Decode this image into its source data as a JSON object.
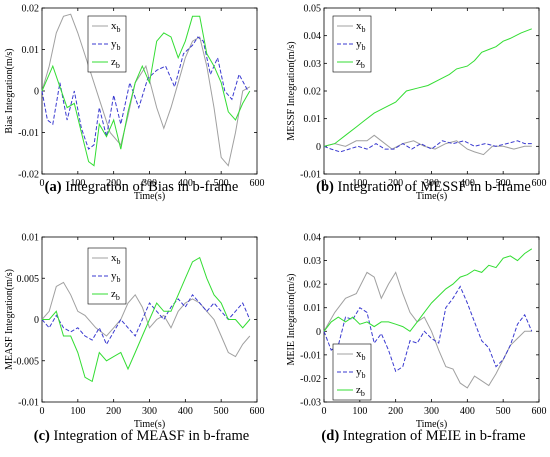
{
  "chart_data": [
    {
      "type": "line",
      "panel_label": "(a)",
      "caption": "Integration of Bias in b-frame",
      "xlabel": "Time(s)",
      "ylabel": "Bias Integration(m/s)",
      "xlim": [
        0,
        600
      ],
      "ylim": [
        -0.02,
        0.02
      ],
      "xticks": [
        0,
        100,
        200,
        300,
        400,
        500,
        600
      ],
      "yticks": [
        -0.02,
        -0.01,
        0,
        0.01,
        0.02
      ],
      "ytick_labels": [
        "-0.02",
        "-0.01",
        "0",
        "0.01",
        "0.02"
      ],
      "legend": "top-center",
      "series": [
        {
          "name": "x",
          "sub": "b",
          "color": "#a0a0a0",
          "dash": "solid",
          "x": [
            0,
            20,
            40,
            60,
            80,
            100,
            130,
            160,
            190,
            220,
            240,
            260,
            290,
            320,
            340,
            360,
            380,
            400,
            420,
            440,
            460,
            480,
            500,
            520,
            540,
            560,
            580
          ],
          "y": [
            0.0,
            0.006,
            0.014,
            0.018,
            0.0185,
            0.014,
            0.006,
            -0.002,
            -0.01,
            -0.013,
            -0.006,
            0.002,
            0.006,
            -0.004,
            -0.009,
            -0.004,
            0.002,
            0.008,
            0.012,
            0.013,
            0.006,
            -0.004,
            -0.016,
            -0.018,
            -0.01,
            0.0,
            0.001
          ]
        },
        {
          "name": "y",
          "sub": "b",
          "color": "#3a3ad0",
          "dash": "dashed",
          "x": [
            0,
            15,
            30,
            50,
            70,
            90,
            110,
            130,
            145,
            160,
            180,
            200,
            220,
            245,
            270,
            295,
            320,
            345,
            370,
            395,
            420,
            435,
            450,
            470,
            490,
            510,
            530,
            550,
            575
          ],
          "y": [
            0.0,
            -0.007,
            -0.008,
            0.002,
            -0.007,
            0.0,
            -0.009,
            -0.014,
            -0.013,
            -0.004,
            -0.011,
            -0.001,
            -0.008,
            0.002,
            -0.004,
            0.003,
            0.005,
            0.006,
            0.001,
            0.009,
            0.011,
            0.013,
            0.012,
            0.004,
            0.008,
            0.0,
            -0.002,
            0.004,
            0.0
          ]
        },
        {
          "name": "z",
          "sub": "b",
          "color": "#33dd33",
          "dash": "solid",
          "x": [
            0,
            10,
            30,
            50,
            70,
            90,
            110,
            130,
            145,
            160,
            180,
            200,
            220,
            240,
            260,
            280,
            300,
            320,
            340,
            360,
            380,
            400,
            420,
            440,
            460,
            480,
            500,
            520,
            540,
            560,
            580
          ],
          "y": [
            0.0,
            0.002,
            0.006,
            0.001,
            -0.004,
            -0.003,
            -0.01,
            -0.017,
            -0.018,
            -0.008,
            -0.011,
            -0.007,
            -0.014,
            -0.005,
            0.002,
            0.006,
            0.002,
            0.012,
            0.014,
            0.013,
            0.008,
            0.012,
            0.018,
            0.018,
            0.009,
            0.006,
            0.002,
            -0.005,
            -0.007,
            -0.003,
            0.0
          ]
        }
      ]
    },
    {
      "type": "line",
      "panel_label": "(b)",
      "caption": "Integration of MESSF in b-frame",
      "xlabel": "Time(s)",
      "ylabel": "MESSF Integration(m/s)",
      "xlim": [
        0,
        600
      ],
      "ylim": [
        -0.01,
        0.05
      ],
      "xticks": [
        0,
        100,
        200,
        300,
        400,
        500,
        600
      ],
      "yticks": [
        -0.01,
        0,
        0.01,
        0.02,
        0.03,
        0.04,
        0.05
      ],
      "ytick_labels": [
        "-0.01",
        "0",
        "0.01",
        "0.02",
        "0.03",
        "0.04",
        "0.05"
      ],
      "legend": "top-left",
      "series": [
        {
          "name": "x",
          "sub": "b",
          "color": "#a0a0a0",
          "dash": "solid",
          "x": [
            0,
            30,
            60,
            90,
            120,
            140,
            160,
            190,
            220,
            250,
            280,
            310,
            340,
            370,
            400,
            420,
            445,
            470,
            500,
            530,
            560,
            580
          ],
          "y": [
            0.0,
            0.001,
            0.0,
            0.002,
            0.002,
            0.004,
            0.002,
            -0.001,
            0.001,
            0.002,
            0.0,
            -0.001,
            0.001,
            0.002,
            -0.001,
            -0.002,
            -0.003,
            0.0,
            0.0,
            -0.001,
            0.0,
            0.0
          ]
        },
        {
          "name": "y",
          "sub": "b",
          "color": "#3a3ad0",
          "dash": "dashed",
          "x": [
            0,
            20,
            45,
            70,
            95,
            120,
            145,
            170,
            195,
            220,
            245,
            270,
            300,
            330,
            360,
            390,
            420,
            450,
            480,
            510,
            540,
            560,
            580
          ],
          "y": [
            0.0,
            -0.001,
            -0.002,
            -0.001,
            0.0,
            -0.001,
            0.001,
            -0.001,
            -0.001,
            0.001,
            -0.001,
            0.001,
            -0.001,
            0.002,
            0.001,
            0.002,
            0.0,
            0.001,
            0.0,
            0.001,
            0.002,
            0.001,
            0.001
          ]
        },
        {
          "name": "z",
          "sub": "b",
          "color": "#33dd33",
          "dash": "solid",
          "x": [
            0,
            30,
            60,
            90,
            110,
            140,
            170,
            200,
            230,
            260,
            290,
            320,
            350,
            370,
            400,
            420,
            440,
            460,
            480,
            500,
            520,
            550,
            580
          ],
          "y": [
            0.0,
            0.001,
            0.004,
            0.007,
            0.009,
            0.012,
            0.014,
            0.016,
            0.02,
            0.021,
            0.022,
            0.024,
            0.026,
            0.028,
            0.029,
            0.031,
            0.034,
            0.035,
            0.036,
            0.038,
            0.039,
            0.041,
            0.0425
          ]
        }
      ]
    },
    {
      "type": "line",
      "panel_label": "(c)",
      "caption": "Integration of MEASF in b-frame",
      "xlabel": "Time(s)",
      "ylabel": "MEASF Integration(m/s)",
      "xlim": [
        0,
        600
      ],
      "ylim": [
        -0.01,
        0.01
      ],
      "xticks": [
        0,
        100,
        200,
        300,
        400,
        500,
        600
      ],
      "yticks": [
        -0.01,
        -0.005,
        0,
        0.005,
        0.01
      ],
      "ytick_labels": [
        "-0.01",
        "-0.005",
        "0",
        "0.005",
        "0.01"
      ],
      "legend": "top-left",
      "series": [
        {
          "name": "x",
          "sub": "b",
          "color": "#a0a0a0",
          "dash": "solid",
          "x": [
            0,
            20,
            40,
            60,
            80,
            100,
            120,
            150,
            180,
            200,
            220,
            240,
            260,
            280,
            300,
            320,
            340,
            360,
            380,
            400,
            420,
            440,
            460,
            480,
            500,
            520,
            540,
            560,
            580
          ],
          "y": [
            0.0,
            0.001,
            0.004,
            0.0045,
            0.003,
            0.001,
            0.0005,
            -0.001,
            -0.002,
            -0.001,
            0.0,
            0.002,
            0.003,
            0.0015,
            -0.001,
            0.0,
            0.0005,
            -0.001,
            0.001,
            0.002,
            0.0025,
            0.002,
            0.001,
            0.0,
            -0.002,
            -0.004,
            -0.0045,
            -0.003,
            -0.002
          ]
        },
        {
          "name": "y",
          "sub": "b",
          "color": "#3a3ad0",
          "dash": "dashed",
          "x": [
            0,
            20,
            40,
            60,
            80,
            100,
            120,
            140,
            160,
            180,
            200,
            220,
            240,
            260,
            280,
            300,
            320,
            340,
            360,
            380,
            400,
            420,
            440,
            460,
            480,
            500,
            520,
            540,
            560,
            580
          ],
          "y": [
            0.0,
            -0.001,
            0.0005,
            -0.001,
            -0.0015,
            -0.001,
            -0.002,
            -0.0025,
            -0.001,
            -0.003,
            -0.0015,
            0.0,
            -0.001,
            -0.002,
            0.0,
            0.002,
            0.001,
            0.0,
            0.0015,
            0.0025,
            0.0015,
            0.003,
            0.002,
            0.001,
            0.002,
            0.001,
            0.0,
            0.001,
            0.002,
            0.0
          ]
        },
        {
          "name": "z",
          "sub": "b",
          "color": "#33dd33",
          "dash": "solid",
          "x": [
            0,
            20,
            40,
            60,
            80,
            100,
            120,
            140,
            160,
            180,
            200,
            220,
            240,
            260,
            280,
            300,
            320,
            340,
            360,
            380,
            400,
            420,
            440,
            460,
            480,
            500,
            520,
            540,
            560,
            580
          ],
          "y": [
            0.0,
            0.0,
            0.001,
            -0.002,
            -0.002,
            -0.004,
            -0.007,
            -0.0075,
            -0.004,
            -0.005,
            -0.0045,
            -0.004,
            -0.006,
            -0.004,
            -0.002,
            0.0,
            0.002,
            0.001,
            0.001,
            0.003,
            0.005,
            0.007,
            0.0075,
            0.005,
            0.003,
            0.002,
            0.0,
            0.0,
            -0.001,
            0.0
          ]
        }
      ]
    },
    {
      "type": "line",
      "panel_label": "(d)",
      "caption": "Integration of MEIE in b-frame",
      "xlabel": "Time(s)",
      "ylabel": "MEIE Integration(m/s)",
      "xlim": [
        0,
        600
      ],
      "ylim": [
        -0.03,
        0.04
      ],
      "xticks": [
        0,
        100,
        200,
        300,
        400,
        500,
        600
      ],
      "yticks": [
        -0.03,
        -0.02,
        -0.01,
        0,
        0.01,
        0.02,
        0.03,
        0.04
      ],
      "ytick_labels": [
        "-0.03",
        "-0.02",
        "-0.01",
        "0",
        "0.01",
        "0.02",
        "0.03",
        "0.04"
      ],
      "legend": "bottom-left",
      "series": [
        {
          "name": "x",
          "sub": "b",
          "color": "#a0a0a0",
          "dash": "solid",
          "x": [
            0,
            30,
            60,
            90,
            120,
            140,
            160,
            180,
            200,
            220,
            240,
            260,
            280,
            300,
            320,
            340,
            360,
            380,
            400,
            420,
            440,
            460,
            480,
            500,
            520,
            540,
            560,
            580
          ],
          "y": [
            0.0,
            0.008,
            0.014,
            0.016,
            0.025,
            0.023,
            0.014,
            0.02,
            0.025,
            0.016,
            0.008,
            0.004,
            0.006,
            0.0,
            -0.008,
            -0.015,
            -0.016,
            -0.022,
            -0.024,
            -0.019,
            -0.021,
            -0.023,
            -0.018,
            -0.012,
            -0.006,
            -0.003,
            0.0,
            0.0
          ]
        },
        {
          "name": "y",
          "sub": "b",
          "color": "#3a3ad0",
          "dash": "dashed",
          "x": [
            0,
            20,
            40,
            60,
            80,
            100,
            120,
            140,
            160,
            180,
            200,
            220,
            240,
            260,
            280,
            300,
            320,
            340,
            360,
            380,
            400,
            420,
            440,
            460,
            480,
            500,
            520,
            540,
            560,
            580
          ],
          "y": [
            0.0,
            -0.008,
            -0.006,
            0.006,
            0.005,
            0.01,
            0.008,
            -0.005,
            -0.001,
            -0.008,
            -0.017,
            -0.015,
            -0.004,
            -0.005,
            0.0,
            -0.003,
            -0.005,
            0.01,
            0.014,
            0.019,
            0.012,
            0.004,
            -0.004,
            -0.007,
            -0.015,
            -0.012,
            -0.006,
            0.003,
            0.007,
            0.0
          ]
        },
        {
          "name": "z",
          "sub": "b",
          "color": "#33dd33",
          "dash": "solid",
          "x": [
            0,
            20,
            40,
            60,
            80,
            100,
            120,
            140,
            160,
            180,
            200,
            220,
            240,
            260,
            280,
            300,
            320,
            340,
            360,
            380,
            400,
            420,
            440,
            460,
            480,
            500,
            520,
            540,
            560,
            580
          ],
          "y": [
            0.0,
            0.004,
            0.006,
            0.004,
            0.006,
            0.003,
            0.004,
            0.002,
            0.004,
            0.004,
            0.003,
            0.002,
            0.0,
            0.004,
            0.008,
            0.012,
            0.015,
            0.018,
            0.02,
            0.023,
            0.024,
            0.026,
            0.025,
            0.028,
            0.027,
            0.031,
            0.032,
            0.03,
            0.033,
            0.035
          ]
        }
      ]
    }
  ]
}
